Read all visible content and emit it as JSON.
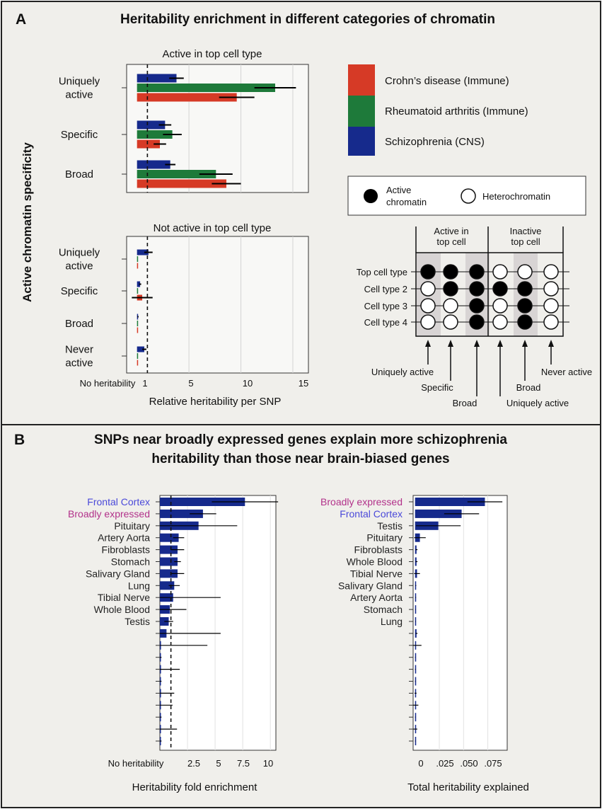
{
  "panel_a": {
    "letter": "A",
    "title": "Heritability enrichment in different categories of chromatin",
    "ylabel": "Active chromatin specificity",
    "top_title": "Active in top cell type",
    "bottom_title": "Not active in top cell type",
    "x_ticks": [
      "No heritability",
      "1",
      "5",
      "10",
      "15"
    ],
    "x_label": "Relative heritability per SNP",
    "legend": [
      {
        "name": "Crohn’s disease (Immune)",
        "color": "#d63a26"
      },
      {
        "name": "Rheumatoid arthritis (Immune)",
        "color": "#1e7a3a"
      },
      {
        "name": "Schizophrenia (CNS)",
        "color": "#162a8c"
      }
    ],
    "state_legend": {
      "active": "Active chromatin",
      "hetero": "Heterochromatin"
    },
    "diagram": {
      "group_active": "Active in top cell",
      "group_inactive": "Inactive top cell",
      "rows": [
        "Top cell type",
        "Cell type 2",
        "Cell type 3",
        "Cell type 4"
      ],
      "columns": [
        "Uniquely active",
        "Specific",
        "Broad",
        "Uniquely active",
        "Broad",
        "Never active"
      ],
      "cells": [
        [
          1,
          1,
          1,
          0,
          0,
          0
        ],
        [
          0,
          1,
          1,
          1,
          1,
          0
        ],
        [
          0,
          0,
          1,
          0,
          1,
          0
        ],
        [
          0,
          0,
          1,
          0,
          1,
          0
        ]
      ]
    }
  },
  "panel_b": {
    "letter": "B",
    "title_line1": "SNPs near broadly expressed genes explain more schizophrenia",
    "title_line2": "heritability than those near brain-biased genes",
    "left_x_ticks": [
      "No heritability",
      "2.5",
      "5",
      "7.5",
      "10"
    ],
    "left_x_label": "Heritability fold enrichment",
    "right_x_ticks": [
      "0",
      ".025",
      ".050",
      ".075"
    ],
    "right_x_label": "Total heritability explained"
  },
  "chart_data": [
    {
      "type": "bar",
      "orientation": "horizontal",
      "title": "Active in top cell type",
      "categories": [
        "Uniquely active",
        "Specific",
        "Broad"
      ],
      "xlabel": "Relative heritability per SNP",
      "ylabel": "Active chromatin specificity",
      "xlim": [
        -1,
        16.5
      ],
      "reference_line": 1,
      "series": [
        {
          "name": "Schizophrenia (CNS)",
          "values": [
            3.8,
            2.7,
            3.2
          ],
          "errors": [
            0.7,
            0.6,
            0.5
          ]
        },
        {
          "name": "Rheumatoid arthritis (Immune)",
          "values": [
            13.3,
            3.4,
            7.6
          ],
          "errors": [
            2.0,
            0.9,
            1.6
          ]
        },
        {
          "name": "Crohn’s disease (Immune)",
          "values": [
            9.6,
            2.2,
            8.6
          ],
          "errors": [
            1.7,
            0.6,
            1.4
          ]
        }
      ]
    },
    {
      "type": "bar",
      "orientation": "horizontal",
      "title": "Not active in top cell type",
      "categories": [
        "Uniquely active",
        "Specific",
        "Broad",
        "Never active"
      ],
      "xlabel": "Relative heritability per SNP",
      "xlim": [
        -1,
        16.5
      ],
      "reference_line": 1,
      "series": [
        {
          "name": "Schizophrenia (CNS)",
          "values": [
            1.1,
            0.3,
            0.1,
            0.7
          ],
          "errors": [
            0.4,
            0.1,
            0.05,
            0.2
          ]
        },
        {
          "name": "Rheumatoid arthritis (Immune)",
          "values": [
            0.05,
            0.1,
            0.05,
            0.1
          ],
          "errors": [
            0,
            0,
            0,
            0
          ]
        },
        {
          "name": "Crohn’s disease (Immune)",
          "values": [
            0.05,
            0.5,
            0.05,
            0.05
          ],
          "errors": [
            0,
            1.0,
            0,
            0
          ]
        }
      ]
    },
    {
      "type": "bar",
      "orientation": "horizontal",
      "categories": [
        "Frontal Cortex",
        "Broadly expressed",
        "Pituitary",
        "Artery Aorta",
        "Fibroblasts",
        "Stomach",
        "Salivary Gland",
        "Lung",
        "Tibial Nerve",
        "Whole Blood",
        "Testis",
        "",
        "",
        "",
        "",
        "",
        "",
        "",
        "",
        "",
        ""
      ],
      "category_colors": {
        "Frontal Cortex": "#4a49d9",
        "Broadly expressed": "#b2318a"
      },
      "xlabel": "Heritability fold enrichment",
      "xlim": [
        0,
        10.5
      ],
      "reference_line": 1,
      "values": [
        7.7,
        3.9,
        3.5,
        1.7,
        1.6,
        1.6,
        1.6,
        1.3,
        1.2,
        0.9,
        0.8,
        0.6,
        0.1,
        0.05,
        0.1,
        0.05,
        0.1,
        0.05,
        0.05,
        0.05,
        0.05
      ],
      "errors": [
        3.0,
        1.2,
        3.5,
        0.5,
        0.6,
        0.3,
        0.6,
        0.5,
        4.3,
        1.5,
        0.4,
        4.9,
        4.2,
        0.1,
        1.7,
        0.1,
        1.2,
        1.1,
        0.1,
        1.5,
        0.1
      ]
    },
    {
      "type": "bar",
      "orientation": "horizontal",
      "categories": [
        "Broadly expressed",
        "Frontal Cortex",
        "Testis",
        "Pituitary",
        "Fibroblasts",
        "Whole Blood",
        "Tibial Nerve",
        "Salivary Gland",
        "Artery Aorta",
        "Stomach",
        "Lung",
        "",
        "",
        "",
        "",
        "",
        "",
        "",
        "",
        "",
        ""
      ],
      "category_colors": {
        "Broadly expressed": "#b2318a",
        "Frontal Cortex": "#4a49d9"
      },
      "xlabel": "Total heritability explained",
      "xlim": [
        -0.002,
        0.095
      ],
      "values": [
        0.072,
        0.048,
        0.024,
        0.005,
        0.0015,
        0.0015,
        0.002,
        0.0008,
        0.0007,
        0.0006,
        0.0005,
        0.0015,
        0.0006,
        0.0002,
        0.0003,
        0.0002,
        0.0005,
        0.0004,
        0.0002,
        0.0003,
        0.0002
      ],
      "errors": [
        0.018,
        0.018,
        0.023,
        0.006,
        0.001,
        0.001,
        0.003,
        0.0004,
        0.0003,
        0.0002,
        0.0002,
        0.001,
        0.006,
        0.0002,
        0.0003,
        0.0002,
        0.001,
        0.003,
        0.0002,
        0.002,
        0.0002
      ]
    }
  ]
}
